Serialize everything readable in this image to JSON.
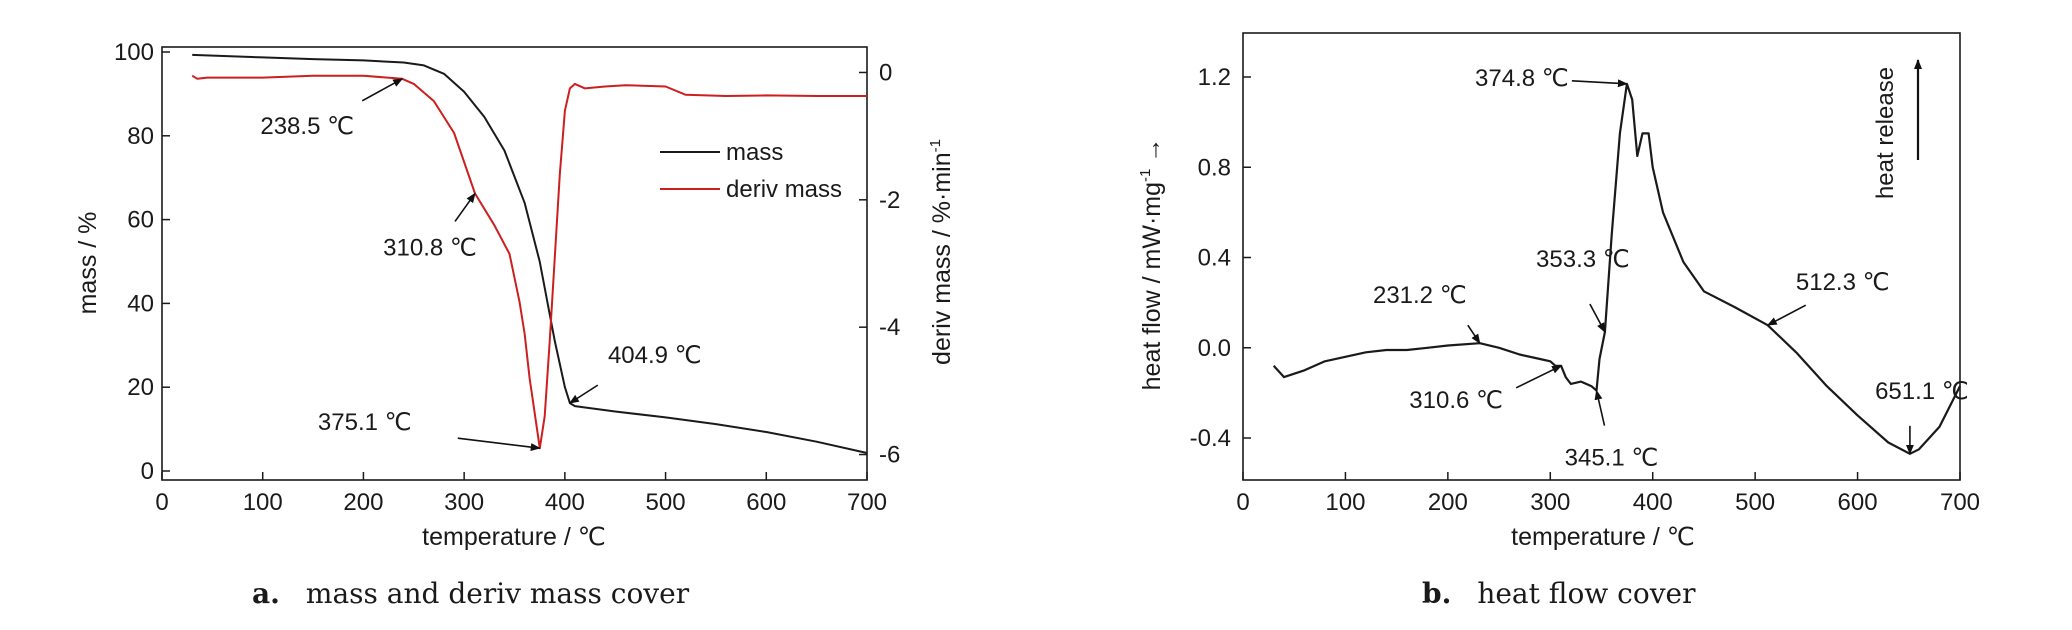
{
  "chart_data": [
    {
      "type": "line",
      "caption": {
        "letter": "a.",
        "text": "mass and deriv mass cover"
      },
      "xlabel": "temperature / ℃",
      "ylabel_left": "mass / %",
      "ylabel_right": "deriv mass / %·min",
      "ylabel_right_sup": "-1",
      "xlim": [
        0,
        700
      ],
      "ylim_left": [
        0,
        100
      ],
      "ylim_right": [
        -6.4,
        0.4
      ],
      "x_ticks": [
        "0",
        "100",
        "200",
        "300",
        "400",
        "500",
        "600",
        "700"
      ],
      "y_ticks_left": [
        "0",
        "20",
        "40",
        "60",
        "80",
        "100"
      ],
      "y_ticks_right": [
        "-6",
        "-4",
        "-2",
        "0"
      ],
      "legend": [
        "mass",
        "deriv mass"
      ],
      "legend_position": "upper-right",
      "colors": {
        "mass": "#1a1a1a",
        "deriv mass": "#cc1f1f"
      },
      "series": [
        {
          "name": "mass",
          "axis": "left",
          "x": [
            30,
            100,
            150,
            200,
            240,
            260,
            280,
            300,
            320,
            340,
            360,
            375,
            390,
            400,
            405,
            410,
            450,
            500,
            550,
            600,
            650,
            700
          ],
          "y": [
            99.3,
            98.7,
            98.3,
            98,
            97.5,
            96.8,
            94.8,
            90.5,
            84.5,
            76.5,
            64,
            50,
            31,
            20,
            16.2,
            15.5,
            14.2,
            12.8,
            11.2,
            9.3,
            7,
            4.3
          ]
        },
        {
          "name": "deriv mass",
          "axis": "right",
          "x": [
            30,
            35,
            45,
            100,
            150,
            200,
            238.5,
            250,
            270,
            290,
            310.8,
            330,
            345,
            355,
            360,
            365,
            375.1,
            380,
            385,
            390,
            395,
            400,
            405,
            410,
            420,
            440,
            460,
            500,
            520,
            560,
            600,
            650,
            700
          ],
          "y": [
            -0.05,
            -0.1,
            -0.08,
            -0.08,
            -0.05,
            -0.05,
            -0.1,
            -0.18,
            -0.45,
            -0.95,
            -1.9,
            -2.4,
            -2.85,
            -3.6,
            -4.1,
            -4.8,
            -5.9,
            -5.4,
            -4.2,
            -2.9,
            -1.6,
            -0.6,
            -0.25,
            -0.18,
            -0.25,
            -0.22,
            -0.2,
            -0.22,
            -0.35,
            -0.37,
            -0.36,
            -0.37,
            -0.37
          ]
        }
      ],
      "annotations": [
        {
          "text": "238.5 ℃",
          "x": 238.5,
          "y": -0.1,
          "axis": "right"
        },
        {
          "text": "310.8 ℃",
          "x": 310.8,
          "y": -1.9,
          "axis": "right"
        },
        {
          "text": "375.1 ℃",
          "x": 375.1,
          "y": -5.9,
          "axis": "right"
        },
        {
          "text": "404.9 ℃",
          "x": 404.9,
          "y": 16.2,
          "axis": "left"
        }
      ]
    },
    {
      "type": "line",
      "caption": {
        "letter": "b.",
        "text": "heat flow cover"
      },
      "xlabel": "temperature / ℃",
      "ylabel": "heat flow / mW·mg",
      "ylabel_sup": "-1",
      "ylabel_arrow": "→",
      "xlim": [
        0,
        700
      ],
      "ylim": [
        -0.6,
        1.4
      ],
      "x_ticks": [
        "0",
        "100",
        "200",
        "300",
        "400",
        "500",
        "600",
        "700"
      ],
      "y_ticks": [
        "-0.4",
        "0.0",
        "0.4",
        "0.8",
        "1.2"
      ],
      "side_label": "heat release",
      "colors": {
        "heat flow": "#1a1a1a"
      },
      "series": [
        {
          "name": "heat flow",
          "x": [
            30,
            40,
            60,
            80,
            100,
            120,
            140,
            160,
            180,
            200,
            231.2,
            250,
            270,
            290,
            300,
            305,
            310.6,
            315,
            320,
            330,
            340,
            345.1,
            348,
            353.3,
            360,
            368,
            374.8,
            380,
            385,
            390,
            396,
            400,
            410,
            430,
            450,
            480,
            512.3,
            540,
            570,
            600,
            630,
            651.1,
            660,
            680,
            700
          ],
          "y": [
            -0.08,
            -0.13,
            -0.1,
            -0.06,
            -0.04,
            -0.02,
            -0.01,
            -0.01,
            0.0,
            0.01,
            0.02,
            0.0,
            -0.03,
            -0.05,
            -0.06,
            -0.08,
            -0.08,
            -0.13,
            -0.16,
            -0.15,
            -0.17,
            -0.19,
            -0.05,
            0.07,
            0.5,
            0.95,
            1.17,
            1.1,
            0.85,
            0.95,
            0.95,
            0.8,
            0.6,
            0.38,
            0.25,
            0.18,
            0.1,
            -0.02,
            -0.17,
            -0.3,
            -0.42,
            -0.47,
            -0.45,
            -0.35,
            -0.17
          ]
        }
      ],
      "annotations": [
        {
          "text": "374.8 ℃",
          "x": 374.8,
          "y": 1.17
        },
        {
          "text": "353.3 ℃",
          "x": 353.3,
          "y": 0.07
        },
        {
          "text": "231.2 ℃",
          "x": 231.2,
          "y": 0.02
        },
        {
          "text": "310.6 ℃",
          "x": 310.6,
          "y": -0.08
        },
        {
          "text": "345.1 ℃",
          "x": 345.1,
          "y": -0.19
        },
        {
          "text": "512.3 ℃",
          "x": 512.3,
          "y": 0.1
        },
        {
          "text": "651.1 ℃",
          "x": 651.1,
          "y": -0.47
        }
      ]
    }
  ]
}
